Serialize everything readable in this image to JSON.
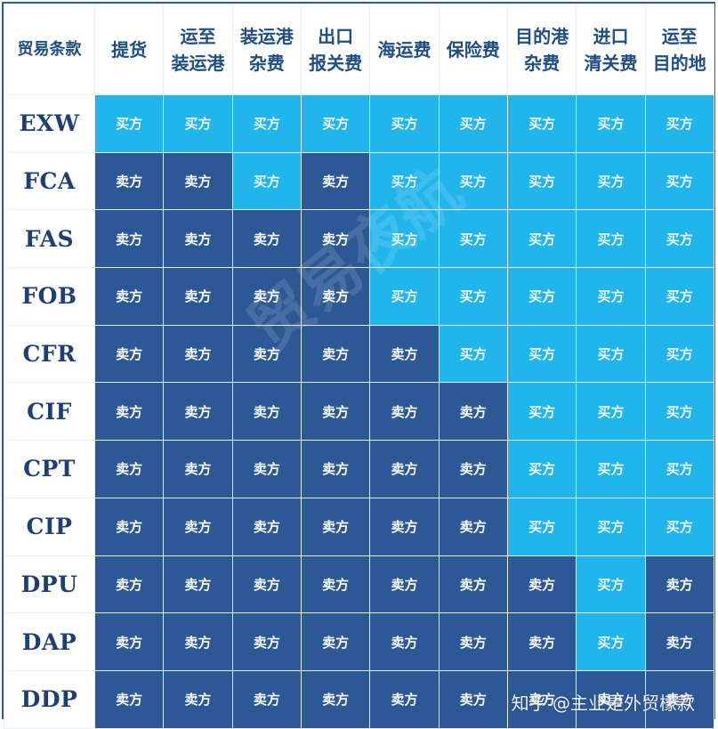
{
  "headers": [
    [
      "贸易条款"
    ],
    [
      "提货"
    ],
    [
      "运至",
      "装运港"
    ],
    [
      "装运港",
      "杂费"
    ],
    [
      "出口",
      "报关费"
    ],
    [
      "海运费"
    ],
    [
      "保险费"
    ],
    [
      "目的港",
      "杂费"
    ],
    [
      "进口",
      "清关费"
    ],
    [
      "运至",
      "目的地"
    ]
  ],
  "party_labels": {
    "seller": "卖方",
    "buyer": "买方"
  },
  "rows": [
    {
      "term": "EXW",
      "cells": [
        "buyer",
        "buyer",
        "buyer",
        "buyer",
        "buyer",
        "buyer",
        "buyer",
        "buyer",
        "buyer"
      ]
    },
    {
      "term": "FCA",
      "cells": [
        "seller",
        "seller",
        "buyer",
        "seller",
        "buyer",
        "buyer",
        "buyer",
        "buyer",
        "buyer"
      ]
    },
    {
      "term": "FAS",
      "cells": [
        "seller",
        "seller",
        "seller",
        "seller",
        "buyer",
        "buyer",
        "buyer",
        "buyer",
        "buyer"
      ]
    },
    {
      "term": "FOB",
      "cells": [
        "seller",
        "seller",
        "seller",
        "seller",
        "buyer",
        "buyer",
        "buyer",
        "buyer",
        "buyer"
      ]
    },
    {
      "term": "CFR",
      "cells": [
        "seller",
        "seller",
        "seller",
        "seller",
        "seller",
        "buyer",
        "buyer",
        "buyer",
        "buyer"
      ]
    },
    {
      "term": "CIF",
      "cells": [
        "seller",
        "seller",
        "seller",
        "seller",
        "seller",
        "seller",
        "buyer",
        "buyer",
        "buyer"
      ]
    },
    {
      "term": "CPT",
      "cells": [
        "seller",
        "seller",
        "seller",
        "seller",
        "seller",
        "seller",
        "buyer",
        "buyer",
        "buyer"
      ]
    },
    {
      "term": "CIP",
      "cells": [
        "seller",
        "seller",
        "seller",
        "seller",
        "seller",
        "seller",
        "buyer",
        "buyer",
        "buyer"
      ]
    },
    {
      "term": "DPU",
      "cells": [
        "seller",
        "seller",
        "seller",
        "seller",
        "seller",
        "seller",
        "seller",
        "buyer",
        "seller"
      ]
    },
    {
      "term": "DAP",
      "cells": [
        "seller",
        "seller",
        "seller",
        "seller",
        "seller",
        "seller",
        "seller",
        "buyer",
        "seller"
      ]
    },
    {
      "term": "DDP",
      "cells": [
        "seller",
        "seller",
        "seller",
        "seller",
        "seller",
        "seller",
        "seller",
        "seller",
        "seller"
      ]
    }
  ],
  "colors": {
    "seller": "#2d5896",
    "buyer": "#22b5ec",
    "header_text": "#1f4e84"
  },
  "watermark": "贸易夜航",
  "credit": "知乎 @主业是外贸檬款"
}
